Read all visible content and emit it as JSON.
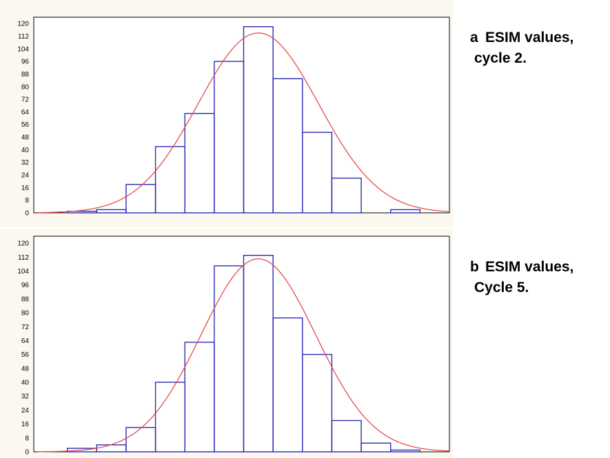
{
  "chart_data": [
    {
      "type": "bar",
      "caption_letter": "a",
      "caption_line1": "ESIM values,",
      "caption_line2": "cycle 2.",
      "yticks": [
        "0",
        "8",
        "16",
        "24",
        "32",
        "40",
        "48",
        "56",
        "64",
        "72",
        "80",
        "88",
        "96",
        "104",
        "112",
        "120"
      ],
      "ylim": [
        0,
        124
      ],
      "bins": 14,
      "values": [
        0,
        1,
        2,
        18,
        42,
        63,
        96,
        118,
        85,
        51,
        22,
        0,
        2,
        0
      ],
      "curve": {
        "peak": 114,
        "center": 7.5,
        "sigma": 2.05,
        "color": "#e8484a"
      },
      "bar_color": "#2b2bb4"
    },
    {
      "type": "bar",
      "caption_letter": "b",
      "caption_line1": "ESIM values,",
      "caption_line2": "Cycle 5.",
      "yticks": [
        "0",
        "8",
        "16",
        "24",
        "32",
        "40",
        "48",
        "56",
        "64",
        "72",
        "80",
        "88",
        "96",
        "104",
        "112",
        "120"
      ],
      "ylim": [
        0,
        124
      ],
      "bins": 14,
      "values": [
        0,
        2,
        4,
        14,
        40,
        63,
        107,
        113,
        77,
        56,
        18,
        5,
        1,
        0
      ],
      "curve": {
        "peak": 111,
        "center": 7.5,
        "sigma": 1.95,
        "color": "#e8484a"
      },
      "bar_color": "#2b2bb4"
    }
  ]
}
